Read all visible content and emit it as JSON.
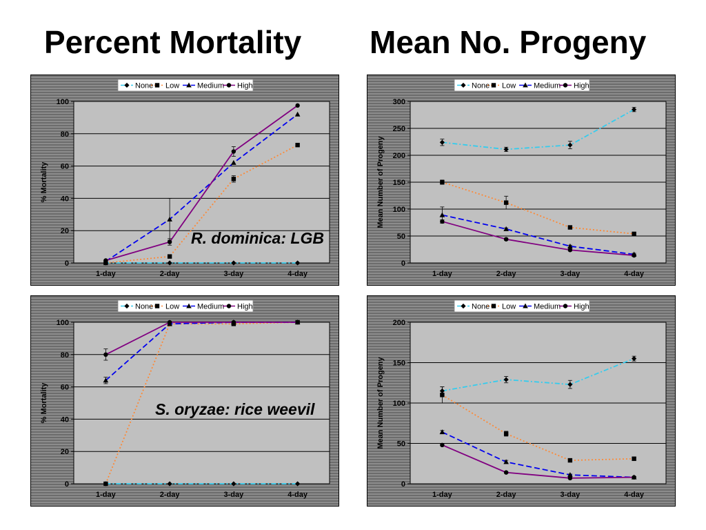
{
  "headings": {
    "left": "Percent Mortality",
    "right": "Mean No. Progeny"
  },
  "annotations": {
    "top": "R. dominica: LGB",
    "bottom": "S. oryzae: rice weevil"
  },
  "colors": {
    "plot_background": "#c0c0c0",
    "panel_background": "#7a7a7a",
    "none": "#33ccee",
    "low": "#ff8833",
    "medium": "#0000ee",
    "high": "#800080"
  },
  "chart_data": [
    {
      "id": "tl",
      "type": "line",
      "title": "",
      "xlabel": "",
      "ylabel": "% Mortality",
      "categories": [
        "1-day",
        "2-day",
        "3-day",
        "4-day"
      ],
      "ylim": [
        0,
        100
      ],
      "yticks": [
        0,
        20,
        40,
        60,
        80,
        100
      ],
      "grid": true,
      "legend": "top-center",
      "series": [
        {
          "name": "None",
          "values": [
            0,
            0,
            0,
            0
          ],
          "errors": [
            0,
            0,
            0,
            0
          ]
        },
        {
          "name": "Low",
          "values": [
            0,
            4,
            52,
            73
          ],
          "errors": [
            0,
            1,
            2,
            0
          ]
        },
        {
          "name": "Medium",
          "values": [
            1,
            27,
            62,
            92
          ],
          "errors": [
            0,
            13,
            0,
            0
          ]
        },
        {
          "name": "High",
          "values": [
            1.5,
            13,
            69,
            97.5
          ],
          "errors": [
            0,
            2,
            3,
            0
          ]
        }
      ]
    },
    {
      "id": "tr",
      "type": "line",
      "title": "",
      "xlabel": "",
      "ylabel": "Mean Number of Progeny",
      "categories": [
        "1-day",
        "2-day",
        "3-day",
        "4-day"
      ],
      "ylim": [
        0,
        300
      ],
      "yticks": [
        0,
        50,
        100,
        150,
        200,
        250,
        300
      ],
      "grid": true,
      "legend": "top-center",
      "series": [
        {
          "name": "None",
          "values": [
            224,
            211,
            219,
            285
          ],
          "errors": [
            6,
            4,
            7,
            4
          ]
        },
        {
          "name": "Low",
          "values": [
            150,
            112,
            66,
            54
          ],
          "errors": [
            4,
            12,
            2,
            2
          ]
        },
        {
          "name": "Medium",
          "values": [
            89,
            63,
            31,
            16
          ],
          "errors": [
            15,
            2,
            2,
            2
          ]
        },
        {
          "name": "High",
          "values": [
            77,
            44,
            24,
            14
          ],
          "errors": [
            3,
            2,
            2,
            2
          ]
        }
      ]
    },
    {
      "id": "bl",
      "type": "line",
      "title": "",
      "xlabel": "",
      "ylabel": "% Mortality",
      "categories": [
        "1-day",
        "2-day",
        "3-day",
        "4-day"
      ],
      "ylim": [
        0,
        100
      ],
      "yticks": [
        0,
        20,
        40,
        60,
        80,
        100
      ],
      "grid": true,
      "legend": "top-center",
      "series": [
        {
          "name": "None",
          "values": [
            0,
            0,
            0,
            0
          ],
          "errors": [
            0,
            0,
            0,
            0
          ]
        },
        {
          "name": "Low",
          "values": [
            0,
            99,
            99,
            100
          ],
          "errors": [
            0,
            0,
            1,
            0
          ]
        },
        {
          "name": "Medium",
          "values": [
            64,
            99,
            100,
            100
          ],
          "errors": [
            2,
            0,
            0,
            0
          ]
        },
        {
          "name": "High",
          "values": [
            80,
            100,
            100,
            100
          ],
          "errors": [
            3.5,
            0,
            0,
            0
          ]
        }
      ]
    },
    {
      "id": "br",
      "type": "line",
      "title": "",
      "xlabel": "",
      "ylabel": "Mean Number of Progeny",
      "categories": [
        "1-day",
        "2-day",
        "3-day",
        "4-day"
      ],
      "ylim": [
        0,
        200
      ],
      "yticks": [
        0,
        50,
        100,
        150,
        200
      ],
      "grid": true,
      "legend": "top-center",
      "series": [
        {
          "name": "None",
          "values": [
            115,
            129,
            123,
            155
          ],
          "errors": [
            5,
            4,
            5,
            3
          ]
        },
        {
          "name": "Low",
          "values": [
            110,
            62,
            29,
            31
          ],
          "errors": [
            10,
            3,
            2,
            2
          ]
        },
        {
          "name": "Medium",
          "values": [
            64,
            27,
            11,
            8
          ],
          "errors": [
            2,
            2,
            1,
            1
          ]
        },
        {
          "name": "High",
          "values": [
            48,
            14,
            7,
            8
          ],
          "errors": [
            1,
            1,
            1,
            1
          ]
        }
      ]
    }
  ]
}
